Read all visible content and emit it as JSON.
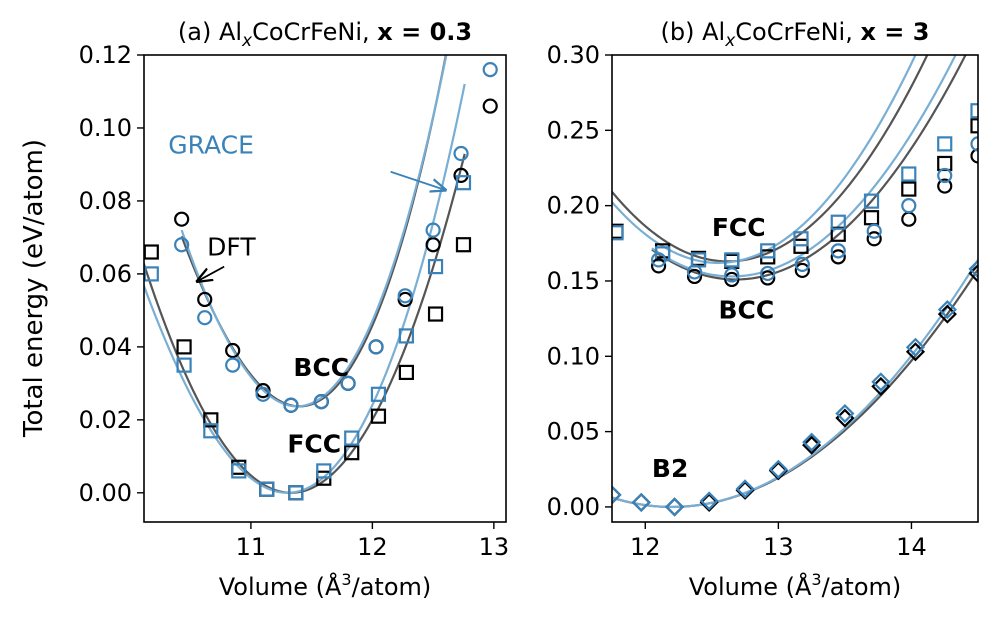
{
  "colors": {
    "dft": "#000000",
    "grace": "#3a82b8",
    "dft_line": "#555555",
    "grace_line": "#79aed5"
  },
  "figure": {
    "ylabel": "Total energy (eV/atom)"
  },
  "chart_data": [
    {
      "type": "scatter",
      "id": "a",
      "title_prefix": "(a) Al",
      "title_sub": "x",
      "title_suffix": "CoCrFeNi, ",
      "title_bold": "x = 0.3",
      "xlabel_main": "Volume (Å",
      "xlabel_sup": "3",
      "xlabel_end": "/atom)",
      "ylabel": "Total energy (eV/atom)",
      "xlim": [
        10.12,
        13.1
      ],
      "ylim": [
        -0.008,
        0.12
      ],
      "xticks": [
        11,
        12,
        13
      ],
      "xtick_labels": [
        "11",
        "12",
        "13"
      ],
      "yticks": [
        0.0,
        0.02,
        0.04,
        0.06,
        0.08,
        0.1,
        0.12
      ],
      "ytick_labels": [
        "0.00",
        "0.02",
        "0.04",
        "0.06",
        "0.08",
        "0.10",
        "0.12"
      ],
      "labels": [
        {
          "text": "BCC",
          "bold": true,
          "x": 11.35,
          "y": 0.032,
          "color": "#000000"
        },
        {
          "text": "FCC",
          "bold": true,
          "x": 11.3,
          "y": 0.011,
          "color": "#000000"
        },
        {
          "text": "DFT",
          "bold": false,
          "x": 10.64,
          "y": 0.065,
          "color": "#000000"
        },
        {
          "text": "GRACE",
          "bold": false,
          "x": 10.32,
          "y": 0.093,
          "color": "#3a82b8"
        }
      ],
      "arrows": [
        {
          "from": [
            10.78,
            0.062
          ],
          "to": [
            10.56,
            0.058
          ],
          "color": "#000000"
        },
        {
          "from": [
            10.34,
            0.087
          ],
          "to": [
            10.7,
            0.083
          ],
          "color": "#3a82b8"
        }
      ],
      "series": [
        {
          "name": "DFT BCC",
          "marker": "circle",
          "color": "#000000",
          "x": [
            10.43,
            10.62,
            10.85,
            11.1,
            11.33,
            11.58,
            11.8,
            12.03,
            12.27,
            12.5,
            12.73,
            12.97
          ],
          "y": [
            0.075,
            0.053,
            0.039,
            0.028,
            0.024,
            0.025,
            0.03,
            0.04,
            0.053,
            0.068,
            0.087,
            0.106
          ]
        },
        {
          "name": "GRACE BCC",
          "marker": "circle",
          "color": "#3a82b8",
          "x": [
            10.43,
            10.62,
            10.85,
            11.1,
            11.33,
            11.58,
            11.8,
            12.03,
            12.27,
            12.5,
            12.73,
            12.97
          ],
          "y": [
            0.068,
            0.048,
            0.035,
            0.027,
            0.024,
            0.025,
            0.03,
            0.04,
            0.054,
            0.072,
            0.093,
            0.116
          ]
        },
        {
          "name": "DFT FCC",
          "marker": "square",
          "color": "#000000",
          "x": [
            10.18,
            10.45,
            10.67,
            10.9,
            11.13,
            11.37,
            11.6,
            11.83,
            12.05,
            12.28,
            12.52,
            12.75
          ],
          "y": [
            0.066,
            0.04,
            0.02,
            0.007,
            0.001,
            0.0,
            0.004,
            0.011,
            0.021,
            0.033,
            0.049,
            0.068
          ]
        },
        {
          "name": "GRACE FCC",
          "marker": "square",
          "color": "#3a82b8",
          "x": [
            10.18,
            10.45,
            10.67,
            10.9,
            11.13,
            11.37,
            11.6,
            11.83,
            12.05,
            12.28,
            12.52,
            12.75
          ],
          "y": [
            0.06,
            0.035,
            0.017,
            0.006,
            0.001,
            0.0,
            0.006,
            0.015,
            0.027,
            0.043,
            0.062,
            0.085
          ]
        }
      ],
      "curves": [
        {
          "name": "DFT BCC fit",
          "color": "#555555",
          "vmin": 10.43,
          "vmax": 12.97,
          "v0": 11.4,
          "e0": 0.0237,
          "a": 0.057,
          "b": 0.0077
        },
        {
          "name": "GRACE BCC fit",
          "color": "#79aed5",
          "vmin": 10.43,
          "vmax": 12.97,
          "v0": 11.38,
          "e0": 0.0237,
          "a": 0.058,
          "b": 0.0047
        },
        {
          "name": "DFT FCC fit",
          "color": "#555555",
          "vmin": 10.1,
          "vmax": 12.76,
          "v0": 11.33,
          "e0": 0.0,
          "a": 0.044,
          "b": 0.001
        },
        {
          "name": "GRACE FCC fit",
          "color": "#79aed5",
          "vmin": 10.1,
          "vmax": 12.76,
          "v0": 11.3,
          "e0": 0.0,
          "a": 0.046,
          "b": 0.0045
        }
      ]
    },
    {
      "type": "scatter",
      "id": "b",
      "title_prefix": "(b) Al",
      "title_sub": "x",
      "title_suffix": "CoCrFeNi, ",
      "title_bold": "x = 3",
      "xlabel_main": "Volume (Å",
      "xlabel_sup": "3",
      "xlabel_end": "/atom)",
      "xlim": [
        11.75,
        14.5
      ],
      "ylim": [
        -0.01,
        0.3
      ],
      "xticks": [
        12,
        13,
        14
      ],
      "xtick_labels": [
        "12",
        "13",
        "14"
      ],
      "yticks": [
        0.0,
        0.05,
        0.1,
        0.15,
        0.2,
        0.25,
        0.3
      ],
      "ytick_labels": [
        "0.00",
        "0.05",
        "0.10",
        "0.15",
        "0.20",
        "0.25",
        "0.30"
      ],
      "labels": [
        {
          "text": "FCC",
          "bold": true,
          "x": 12.5,
          "y": 0.18,
          "color": "#000000"
        },
        {
          "text": "BCC",
          "bold": true,
          "x": 12.55,
          "y": 0.125,
          "color": "#000000"
        },
        {
          "text": "B2",
          "bold": true,
          "x": 12.05,
          "y": 0.02,
          "color": "#000000"
        }
      ],
      "arrows": [],
      "series": [
        {
          "name": "DFT FCC",
          "marker": "square",
          "color": "#000000",
          "x": [
            11.78,
            12.13,
            12.4,
            12.65,
            12.92,
            13.17,
            13.45,
            13.7,
            13.98,
            14.25,
            14.5
          ],
          "y": [
            0.183,
            0.17,
            0.165,
            0.163,
            0.166,
            0.173,
            0.181,
            0.192,
            0.211,
            0.228,
            0.253
          ]
        },
        {
          "name": "GRACE FCC",
          "marker": "square",
          "color": "#3a82b8",
          "x": [
            11.78,
            12.13,
            12.4,
            12.65,
            12.92,
            13.17,
            13.45,
            13.7,
            13.98,
            14.25,
            14.5
          ],
          "y": [
            0.182,
            0.168,
            0.164,
            0.164,
            0.17,
            0.178,
            0.189,
            0.203,
            0.221,
            0.241,
            0.263
          ]
        },
        {
          "name": "DFT BCC",
          "marker": "circle",
          "color": "#000000",
          "x": [
            12.1,
            12.37,
            12.65,
            12.92,
            13.18,
            13.45,
            13.72,
            13.98,
            14.25,
            14.5
          ],
          "y": [
            0.16,
            0.153,
            0.151,
            0.152,
            0.157,
            0.166,
            0.178,
            0.191,
            0.213,
            0.233
          ]
        },
        {
          "name": "GRACE BCC",
          "marker": "circle",
          "color": "#3a82b8",
          "x": [
            12.1,
            12.37,
            12.65,
            12.92,
            13.18,
            13.45,
            13.72,
            13.98,
            14.25,
            14.5
          ],
          "y": [
            0.164,
            0.156,
            0.154,
            0.155,
            0.161,
            0.17,
            0.183,
            0.2,
            0.22,
            0.241
          ]
        },
        {
          "name": "DFT B2",
          "marker": "diamond",
          "color": "#000000",
          "x": [
            11.75,
            11.97,
            12.22,
            12.48,
            12.75,
            13.0,
            13.25,
            13.5,
            13.77,
            14.03,
            14.27,
            14.5
          ],
          "y": [
            0.008,
            0.003,
            0.0,
            0.003,
            0.011,
            0.024,
            0.041,
            0.059,
            0.08,
            0.103,
            0.128,
            0.155
          ]
        },
        {
          "name": "GRACE B2",
          "marker": "diamond",
          "color": "#3a82b8",
          "x": [
            11.75,
            11.97,
            12.22,
            12.48,
            12.75,
            13.0,
            13.25,
            13.5,
            13.77,
            14.03,
            14.27,
            14.5
          ],
          "y": [
            0.008,
            0.003,
            0.0,
            0.004,
            0.012,
            0.025,
            0.043,
            0.062,
            0.083,
            0.106,
            0.131,
            0.158
          ]
        }
      ],
      "curves": [
        {
          "name": "DFT FCC fit",
          "color": "#555555",
          "vmin": 11.75,
          "vmax": 14.5,
          "v0": 12.62,
          "e0": 0.163,
          "a": 0.061,
          "b": 0.0
        },
        {
          "name": "GRACE FCC fit",
          "color": "#79aed5",
          "vmin": 11.75,
          "vmax": 14.5,
          "v0": 12.55,
          "e0": 0.162,
          "a": 0.063,
          "b": 0.0
        },
        {
          "name": "DFT BCC fit",
          "color": "#555555",
          "vmin": 12.05,
          "vmax": 14.5,
          "v0": 12.68,
          "e0": 0.151,
          "a": 0.05,
          "b": 0.0
        },
        {
          "name": "GRACE BCC fit",
          "color": "#79aed5",
          "vmin": 12.05,
          "vmax": 14.5,
          "v0": 12.65,
          "e0": 0.153,
          "a": 0.052,
          "b": 0.0
        },
        {
          "name": "DFT B2 fit",
          "color": "#555555",
          "vmin": 11.75,
          "vmax": 14.5,
          "v0": 12.2,
          "e0": 0.0,
          "a": 0.0305,
          "b": -0.0003
        },
        {
          "name": "GRACE B2 fit",
          "color": "#79aed5",
          "vmin": 11.75,
          "vmax": 14.5,
          "v0": 12.2,
          "e0": 0.0,
          "a": 0.031,
          "b": 0.0
        }
      ]
    }
  ]
}
